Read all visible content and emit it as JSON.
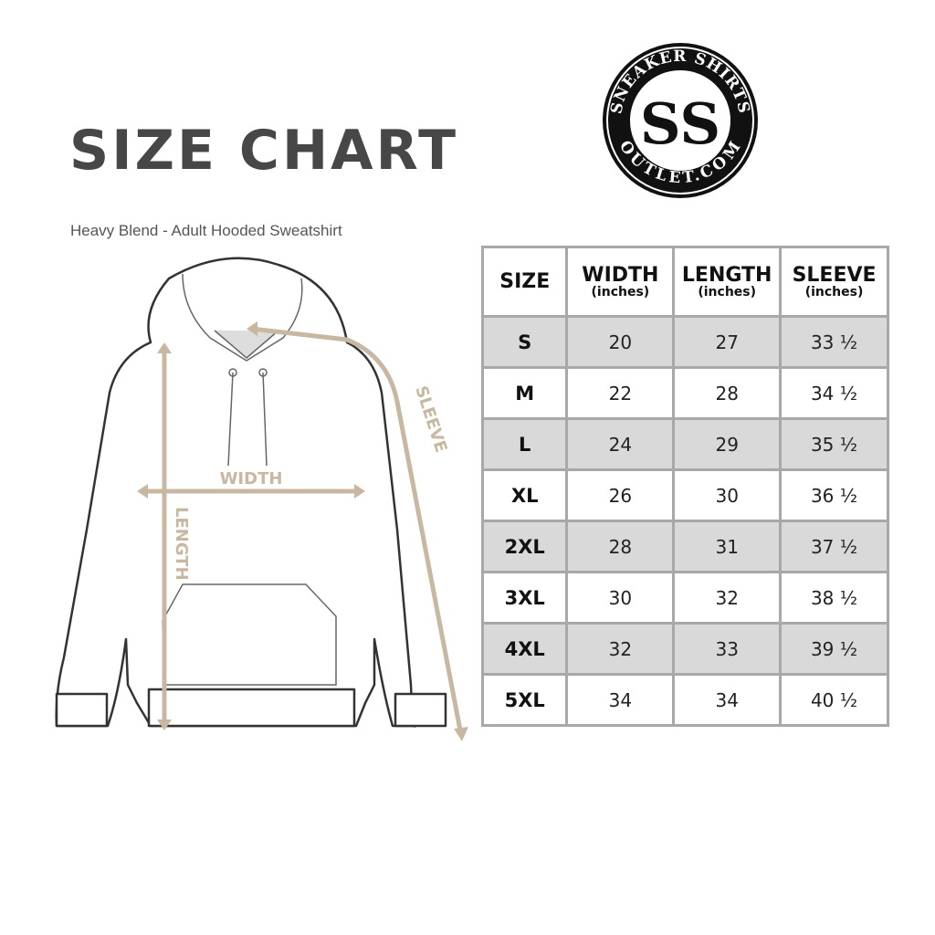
{
  "title": "SIZE CHART",
  "subtitle": "Heavy Blend - Adult Hooded Sweatshirt",
  "logo": {
    "top_text": "SNEAKER SHIRTS",
    "bottom_text": "OUTLET.COM",
    "monogram": "SS"
  },
  "diagram_labels": {
    "width": "WIDTH",
    "length": "LENGTH",
    "sleeve": "SLEEVE"
  },
  "colors": {
    "measure": "#c8b8a2",
    "table_border": "#a8a8a8",
    "row_shade": "#d9d9d9",
    "title": "#474747"
  },
  "table": {
    "headers": [
      {
        "label": "SIZE",
        "unit": ""
      },
      {
        "label": "WIDTH",
        "unit": "(inches)"
      },
      {
        "label": "LENGTH",
        "unit": "(inches)"
      },
      {
        "label": "SLEEVE",
        "unit": "(inches)"
      }
    ],
    "rows": [
      [
        "S",
        "20",
        "27",
        "33 ½"
      ],
      [
        "M",
        "22",
        "28",
        "34 ½"
      ],
      [
        "L",
        "24",
        "29",
        "35 ½"
      ],
      [
        "XL",
        "26",
        "30",
        "36 ½"
      ],
      [
        "2XL",
        "28",
        "31",
        "37 ½"
      ],
      [
        "3XL",
        "30",
        "32",
        "38 ½"
      ],
      [
        "4XL",
        "32",
        "33",
        "39 ½"
      ],
      [
        "5XL",
        "34",
        "34",
        "40 ½"
      ]
    ]
  }
}
